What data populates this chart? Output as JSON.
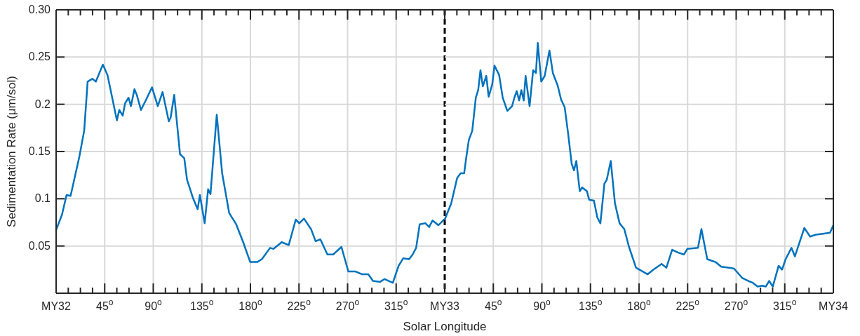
{
  "chart_data": [
    {
      "type": "line",
      "xlabel": "Solar Longitude",
      "ylabel": "Sedimentation Rate (μm/sol)",
      "xlim": [
        0,
        360
      ],
      "ylim": [
        0,
        0.3
      ],
      "xticks": [
        {
          "value": 0,
          "label": "MY32"
        },
        {
          "value": 11.25,
          "label": null
        },
        {
          "value": 22.5,
          "label": null
        },
        {
          "value": 33.75,
          "label": null
        },
        {
          "value": 45,
          "label": "45$^{o}$"
        },
        {
          "value": 56.25,
          "label": null
        },
        {
          "value": 67.5,
          "label": null
        },
        {
          "value": 78.75,
          "label": null
        },
        {
          "value": 90,
          "label": "90$^{o}$"
        },
        {
          "value": 101.25,
          "label": null
        },
        {
          "value": 112.5,
          "label": null
        },
        {
          "value": 123.75,
          "label": null
        },
        {
          "value": 135,
          "label": "135$^{o}$"
        },
        {
          "value": 146.25,
          "label": null
        },
        {
          "value": 157.5,
          "label": null
        },
        {
          "value": 168.75,
          "label": null
        },
        {
          "value": 180,
          "label": "180$^{o}$"
        },
        {
          "value": 191.25,
          "label": null
        },
        {
          "value": 202.5,
          "label": null
        },
        {
          "value": 213.75,
          "label": null
        },
        {
          "value": 225,
          "label": "225$^{o}$"
        },
        {
          "value": 236.25,
          "label": null
        },
        {
          "value": 247.5,
          "label": null
        },
        {
          "value": 258.75,
          "label": null
        },
        {
          "value": 270,
          "label": "270$^{o}$"
        },
        {
          "value": 281.25,
          "label": null
        },
        {
          "value": 292.5,
          "label": null
        },
        {
          "value": 303.75,
          "label": null
        },
        {
          "value": 315,
          "label": "315$^{o}$"
        },
        {
          "value": 326.25,
          "label": null
        },
        {
          "value": 337.5,
          "label": null
        },
        {
          "value": 348.75,
          "label": null
        }
      ],
      "yticks": [
        0.05,
        0.1,
        0.15,
        0.2,
        0.25,
        {
          "value": 0.3,
          "label": "0.30"
        }
      ],
      "grid": true,
      "line_style": "solid",
      "ref_lines": [
        {
          "axis": "x",
          "value": 360,
          "color": "#000000",
          "line_style": "dashed"
        }
      ],
      "x": [
        0,
        5.4,
        9.7,
        13.4,
        21.6,
        26,
        29.2,
        33.6,
        36.8,
        43.3,
        47.6,
        56.3,
        58.5,
        61.7,
        63.9,
        67.1,
        69.3,
        72.6,
        74.7,
        78.6,
        83.4,
        88.8,
        94.2,
        98.6,
        104.4,
        106.1,
        109.4,
        114.8,
        118.7,
        121.3,
        126.7,
        131.1,
        133.2,
        137.6,
        140.8,
        143,
        148.8,
        153.8,
        160.3,
        166.8,
        173.3,
        179.8,
        186.3,
        190.6,
        198.2,
        201.4,
        209,
        215.5,
        222,
        225.3,
        229.6,
        236.1,
        240.4,
        244.8,
        251.3,
        256.7,
        264.3,
        270.7,
        277.2,
        283.7,
        289.2,
        293.5,
        300,
        304.3,
        311.9,
        317.3,
        321.6,
        327,
        330.3,
        333.5,
        336.8,
        342.2,
        345.5,
        348.7,
        354.1,
        359.5
      ],
      "series": [
        {
          "color": "#0072bd",
          "values": [
            0.067,
            0.083,
            0.104,
            0.103,
            0.145,
            0.172,
            0.224,
            0.227,
            0.224,
            0.242,
            0.231,
            0.183,
            0.194,
            0.188,
            0.201,
            0.207,
            0.198,
            0.216,
            0.21,
            0.194,
            0.205,
            0.218,
            0.198,
            0.213,
            0.182,
            0.186,
            0.21,
            0.147,
            0.143,
            0.12,
            0.101,
            0.089,
            0.104,
            0.074,
            0.11,
            0.105,
            0.189,
            0.127,
            0.085,
            0.073,
            0.054,
            0.033,
            0.033,
            0.036,
            0.048,
            0.047,
            0.054,
            0.051,
            0.078,
            0.074,
            0.079,
            0.068,
            0.055,
            0.057,
            0.041,
            0.041,
            0.049,
            0.023,
            0.023,
            0.02,
            0.02,
            0.013,
            0.012,
            0.015,
            0.011,
            0.029,
            0.037,
            0.036,
            0.041,
            0.048,
            0.073,
            0.074,
            0.07,
            0.077,
            0.072,
            0.078
          ]
        }
      ]
    },
    {
      "type": "line",
      "xlim": [
        0,
        360
      ],
      "ylim": [
        0,
        0.3
      ],
      "tick_labels": "x",
      "xticks": [
        {
          "value": 0,
          "label": "MY33"
        },
        {
          "value": 11.25,
          "label": null
        },
        {
          "value": 22.5,
          "label": null
        },
        {
          "value": 33.75,
          "label": null
        },
        {
          "value": 45,
          "label": "45$^{o}$"
        },
        {
          "value": 56.25,
          "label": null
        },
        {
          "value": 67.5,
          "label": null
        },
        {
          "value": 78.75,
          "label": null
        },
        {
          "value": 90,
          "label": "90$^{o}$"
        },
        {
          "value": 101.25,
          "label": null
        },
        {
          "value": 112.5,
          "label": null
        },
        {
          "value": 123.75,
          "label": null
        },
        {
          "value": 135,
          "label": "135$^{o}$"
        },
        {
          "value": 146.25,
          "label": null
        },
        {
          "value": 157.5,
          "label": null
        },
        {
          "value": 168.75,
          "label": null
        },
        {
          "value": 180,
          "label": "180$^{o}$"
        },
        {
          "value": 191.25,
          "label": null
        },
        {
          "value": 202.5,
          "label": null
        },
        {
          "value": 213.75,
          "label": null
        },
        {
          "value": 225,
          "label": "225$^{o}$"
        },
        {
          "value": 236.25,
          "label": null
        },
        {
          "value": 247.5,
          "label": null
        },
        {
          "value": 258.75,
          "label": null
        },
        {
          "value": 270,
          "label": "270$^{o}$"
        },
        {
          "value": 281.25,
          "label": null
        },
        {
          "value": 292.5,
          "label": null
        },
        {
          "value": 303.75,
          "label": null
        },
        {
          "value": 315,
          "label": "315$^{o}$"
        },
        {
          "value": 326.25,
          "label": null
        },
        {
          "value": 337.5,
          "label": null
        },
        {
          "value": 348.75,
          "label": null
        },
        {
          "value": 360,
          "label": "MY34"
        }
      ],
      "yticks": [
        0.05,
        0.1,
        0.15,
        0.2,
        0.25,
        0.3
      ],
      "grid": true,
      "line_style": "solid",
      "x": [
        0,
        6,
        11.5,
        14.7,
        18,
        20.1,
        22.3,
        25.5,
        28.8,
        31,
        33.1,
        35.3,
        38.5,
        40.7,
        44,
        46.1,
        50.4,
        53.7,
        58,
        62.4,
        64.5,
        66.7,
        68.9,
        71,
        73.2,
        74.9,
        78.6,
        81.9,
        84.5,
        86.2,
        89.4,
        92.6,
        97,
        100.2,
        104.6,
        107.8,
        111.1,
        114.3,
        117.6,
        119.7,
        121.9,
        125.1,
        127.3,
        131.7,
        133.8,
        138.2,
        141.4,
        144.2,
        147.9,
        150.1,
        153.8,
        157.7,
        162,
        166.3,
        170.7,
        177.2,
        188,
        193.4,
        200.9,
        205.3,
        210.7,
        216.2,
        221.6,
        224.8,
        234.6,
        237.8,
        243.2,
        250.8,
        256.2,
        263.8,
        268.1,
        275.7,
        281.1,
        285.5,
        289.8,
        294.1,
        297.4,
        300.6,
        303.9,
        309.3,
        312.5,
        315.8,
        321.2,
        324.4,
        329.9,
        333.1,
        338.5,
        343.9,
        350.4,
        356.9,
        360
      ],
      "series": [
        {
          "color": "#0072bd",
          "values": [
            0.078,
            0.095,
            0.122,
            0.127,
            0.127,
            0.145,
            0.162,
            0.172,
            0.207,
            0.215,
            0.236,
            0.219,
            0.23,
            0.208,
            0.221,
            0.241,
            0.231,
            0.207,
            0.193,
            0.198,
            0.207,
            0.214,
            0.204,
            0.215,
            0.204,
            0.23,
            0.198,
            0.236,
            0.233,
            0.265,
            0.224,
            0.23,
            0.257,
            0.233,
            0.22,
            0.205,
            0.197,
            0.169,
            0.137,
            0.13,
            0.14,
            0.108,
            0.112,
            0.108,
            0.099,
            0.098,
            0.08,
            0.074,
            0.116,
            0.12,
            0.14,
            0.095,
            0.074,
            0.068,
            0.049,
            0.027,
            0.02,
            0.025,
            0.031,
            0.027,
            0.046,
            0.043,
            0.041,
            0.047,
            0.048,
            0.068,
            0.036,
            0.033,
            0.028,
            0.027,
            0.026,
            0.016,
            0.013,
            0.011,
            0.007,
            0.008,
            0.007,
            0.013,
            0.007,
            0.029,
            0.025,
            0.036,
            0.048,
            0.039,
            0.058,
            0.069,
            0.06,
            0.062,
            0.063,
            0.064,
            0.072
          ]
        }
      ]
    }
  ]
}
